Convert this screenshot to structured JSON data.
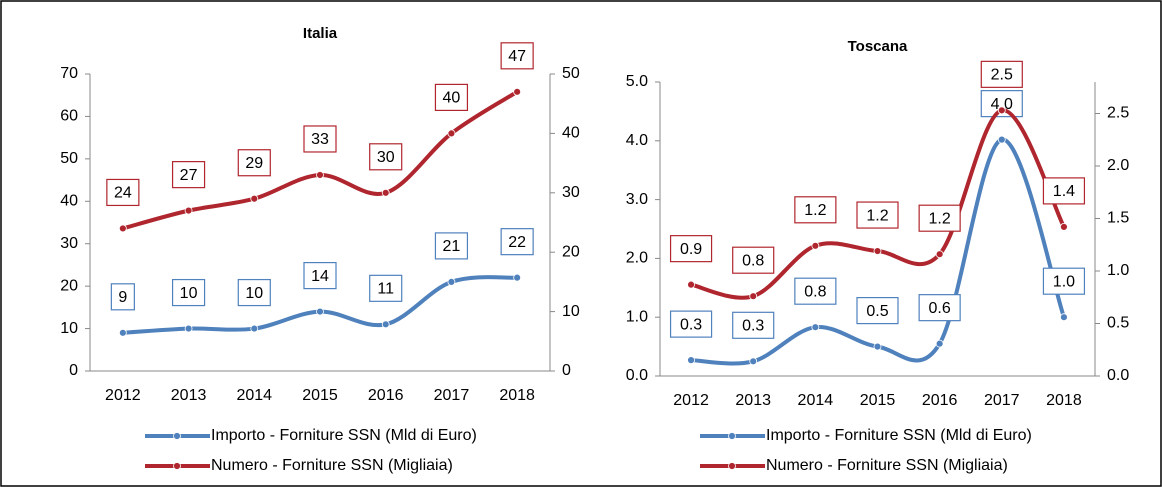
{
  "chart_data": [
    {
      "type": "line",
      "title": "Italia",
      "categories": [
        "2012",
        "2013",
        "2014",
        "2015",
        "2016",
        "2017",
        "2018"
      ],
      "series": [
        {
          "name": "Importo - Forniture SSN (Mld di Euro)",
          "color": "#4f81bd",
          "values": [
            9,
            10,
            10,
            14,
            11,
            21,
            22
          ]
        },
        {
          "name": "Numero - Forniture SSN (Migliaia)",
          "color": "#b0262e",
          "axis": "y2",
          "values": [
            24,
            27,
            29,
            33,
            30,
            40,
            47
          ]
        }
      ],
      "ylim": [
        0,
        70
      ],
      "yticks": [
        0,
        10,
        20,
        30,
        40,
        50,
        60,
        70
      ],
      "y2lim": [
        0,
        50
      ],
      "y2ticks": [
        0,
        10,
        20,
        30,
        40,
        50
      ],
      "legend": "bottom"
    },
    {
      "type": "line",
      "title": "Toscana",
      "categories": [
        "2012",
        "2013",
        "2014",
        "2015",
        "2016",
        "2017",
        "2018"
      ],
      "series": [
        {
          "name": "Importo - Forniture SSN (Mld di Euro)",
          "color": "#4f81bd",
          "values": [
            0.27,
            0.25,
            0.83,
            0.5,
            0.55,
            4.02,
            1.0
          ],
          "value_labels": [
            "0.3",
            "0.3",
            "0.8",
            "0.5",
            "0.6",
            "4.0",
            "1.0"
          ]
        },
        {
          "name": "Numero - Forniture SSN (Migliaia)",
          "color": "#b0262e",
          "axis": "y2",
          "values": [
            0.87,
            0.76,
            1.24,
            1.19,
            1.16,
            2.53,
            1.42
          ],
          "value_labels": [
            "0.9",
            "0.8",
            "1.2",
            "1.2",
            "1.2",
            "2.5",
            "1.4"
          ]
        }
      ],
      "ylim": [
        0,
        5
      ],
      "yticks": [
        {
          "value": 0,
          "label": "0.0"
        },
        {
          "value": 1,
          "label": "1.0"
        },
        {
          "value": 2,
          "label": "2.0"
        },
        {
          "value": 3,
          "label": "3.0"
        },
        {
          "value": 4,
          "label": "4.0"
        },
        {
          "value": 5,
          "label": "5.0"
        }
      ],
      "y2lim": [
        0,
        2.8
      ],
      "y2ticks": [
        {
          "value": 0,
          "label": "0.0"
        },
        {
          "value": 0.5,
          "label": "0.5"
        },
        {
          "value": 1,
          "label": "1.0"
        },
        {
          "value": 1.5,
          "label": "1.5"
        },
        {
          "value": 2,
          "label": "2.0"
        },
        {
          "value": 2.5,
          "label": "2.5"
        }
      ],
      "legend": "bottom"
    }
  ]
}
